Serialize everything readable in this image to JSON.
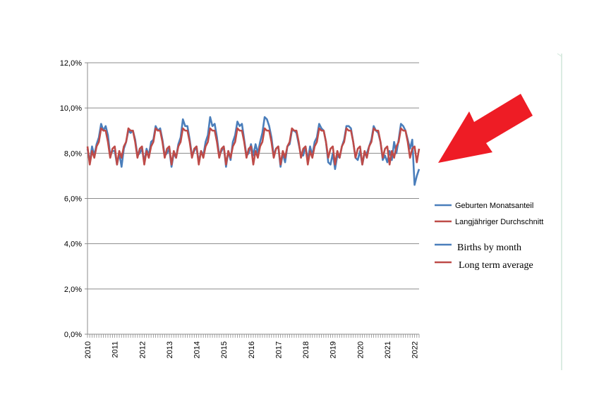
{
  "chart_data": {
    "type": "line",
    "title": "",
    "xlabel": "",
    "ylabel": "",
    "ylim": [
      0,
      12
    ],
    "y_ticks": [
      "0,0%",
      "2,0%",
      "4,0%",
      "6,0%",
      "8,0%",
      "10,0%",
      "12,0%"
    ],
    "x_tick_labels": [
      "2010",
      "2011",
      "2012",
      "2013",
      "2014",
      "2015",
      "2016",
      "2017",
      "2018",
      "2019",
      "2020",
      "2021",
      "2022"
    ],
    "x_start": "2010-01",
    "grid": true,
    "legend_position": "right",
    "legend": [
      {
        "label": "Geburten Monatsanteil",
        "color": "#4a7ebb"
      },
      {
        "label": "Langjähriger Durchschnitt",
        "color": "#be4b48"
      },
      {
        "label": "Births by month",
        "color": "#4a7ebb"
      },
      {
        "label": "Long term average",
        "color": "#be4b48"
      }
    ],
    "series": [
      {
        "name": "Geburten Monatsanteil",
        "color": "#4a7ebb",
        "values": [
          8.2,
          7.6,
          8.3,
          7.9,
          8.4,
          8.7,
          9.3,
          9.0,
          9.2,
          8.8,
          7.9,
          8.1,
          8.1,
          7.5,
          8.0,
          7.4,
          8.2,
          8.5,
          9.0,
          8.9,
          9.0,
          8.6,
          7.9,
          8.0,
          8.2,
          7.6,
          8.2,
          7.9,
          8.5,
          8.6,
          9.2,
          9.0,
          9.1,
          8.6,
          7.9,
          8.0,
          8.2,
          7.4,
          8.0,
          7.8,
          8.4,
          8.7,
          9.5,
          9.2,
          9.2,
          8.6,
          7.9,
          8.1,
          8.3,
          7.6,
          8.1,
          7.9,
          8.5,
          8.8,
          9.6,
          9.2,
          9.3,
          8.7,
          7.9,
          8.1,
          8.3,
          7.4,
          8.1,
          7.7,
          8.5,
          8.8,
          9.4,
          9.2,
          9.3,
          8.6,
          7.9,
          8.0,
          8.4,
          7.9,
          8.4,
          8.0,
          8.5,
          8.9,
          9.6,
          9.5,
          9.2,
          8.7,
          7.9,
          8.2,
          8.3,
          7.4,
          8.0,
          7.6,
          8.3,
          8.4,
          9.0,
          9.0,
          8.9,
          8.4,
          7.9,
          7.9,
          8.3,
          7.7,
          8.3,
          7.9,
          8.5,
          8.7,
          9.3,
          9.1,
          9.0,
          8.5,
          7.6,
          7.5,
          8.0,
          7.3,
          7.9,
          7.8,
          8.3,
          8.6,
          9.2,
          9.2,
          9.1,
          8.5,
          7.8,
          7.7,
          8.1,
          7.5,
          8.0,
          8.0,
          8.3,
          8.6,
          9.2,
          9.0,
          8.9,
          8.5,
          7.7,
          7.9,
          7.6,
          8.1,
          7.7,
          8.5,
          8.0,
          8.6,
          9.3,
          9.2,
          9.0,
          8.6,
          8.2,
          8.6,
          6.6,
          7.0,
          7.3
        ]
      },
      {
        "name": "Langjähriger Durchschnitt",
        "color": "#be4b48",
        "values": [
          8.3,
          7.5,
          8.1,
          7.8,
          8.3,
          8.5,
          9.1,
          9.0,
          9.0,
          8.5,
          7.8,
          8.2,
          8.3,
          7.5,
          8.1,
          7.8,
          8.3,
          8.5,
          9.1,
          9.0,
          9.0,
          8.5,
          7.8,
          8.2,
          8.3,
          7.5,
          8.1,
          7.8,
          8.3,
          8.5,
          9.1,
          9.0,
          9.0,
          8.5,
          7.8,
          8.2,
          8.3,
          7.5,
          8.1,
          7.8,
          8.3,
          8.5,
          9.1,
          9.0,
          9.0,
          8.5,
          7.8,
          8.2,
          8.3,
          7.5,
          8.1,
          7.8,
          8.3,
          8.5,
          9.1,
          9.0,
          9.0,
          8.5,
          7.8,
          8.2,
          8.3,
          7.5,
          8.1,
          7.8,
          8.3,
          8.5,
          9.1,
          9.0,
          9.0,
          8.5,
          7.8,
          8.2,
          8.3,
          7.5,
          8.1,
          7.8,
          8.3,
          8.5,
          9.1,
          9.0,
          9.0,
          8.5,
          7.8,
          8.2,
          8.3,
          7.5,
          8.1,
          7.8,
          8.3,
          8.5,
          9.1,
          9.0,
          9.0,
          8.5,
          7.8,
          8.2,
          8.3,
          7.5,
          8.1,
          7.8,
          8.3,
          8.5,
          9.1,
          9.0,
          9.0,
          8.5,
          7.8,
          8.2,
          8.3,
          7.5,
          8.1,
          7.8,
          8.3,
          8.5,
          9.1,
          9.0,
          9.0,
          8.5,
          7.8,
          8.2,
          8.3,
          7.5,
          8.1,
          7.8,
          8.3,
          8.5,
          9.1,
          9.0,
          9.0,
          8.5,
          7.8,
          8.2,
          8.3,
          7.5,
          8.1,
          7.8,
          8.3,
          8.5,
          9.1,
          9.0,
          9.0,
          8.5,
          7.8,
          8.2,
          8.3,
          7.6,
          8.2
        ]
      }
    ]
  },
  "annotations": {
    "arrow_color": "#ee1c25"
  }
}
